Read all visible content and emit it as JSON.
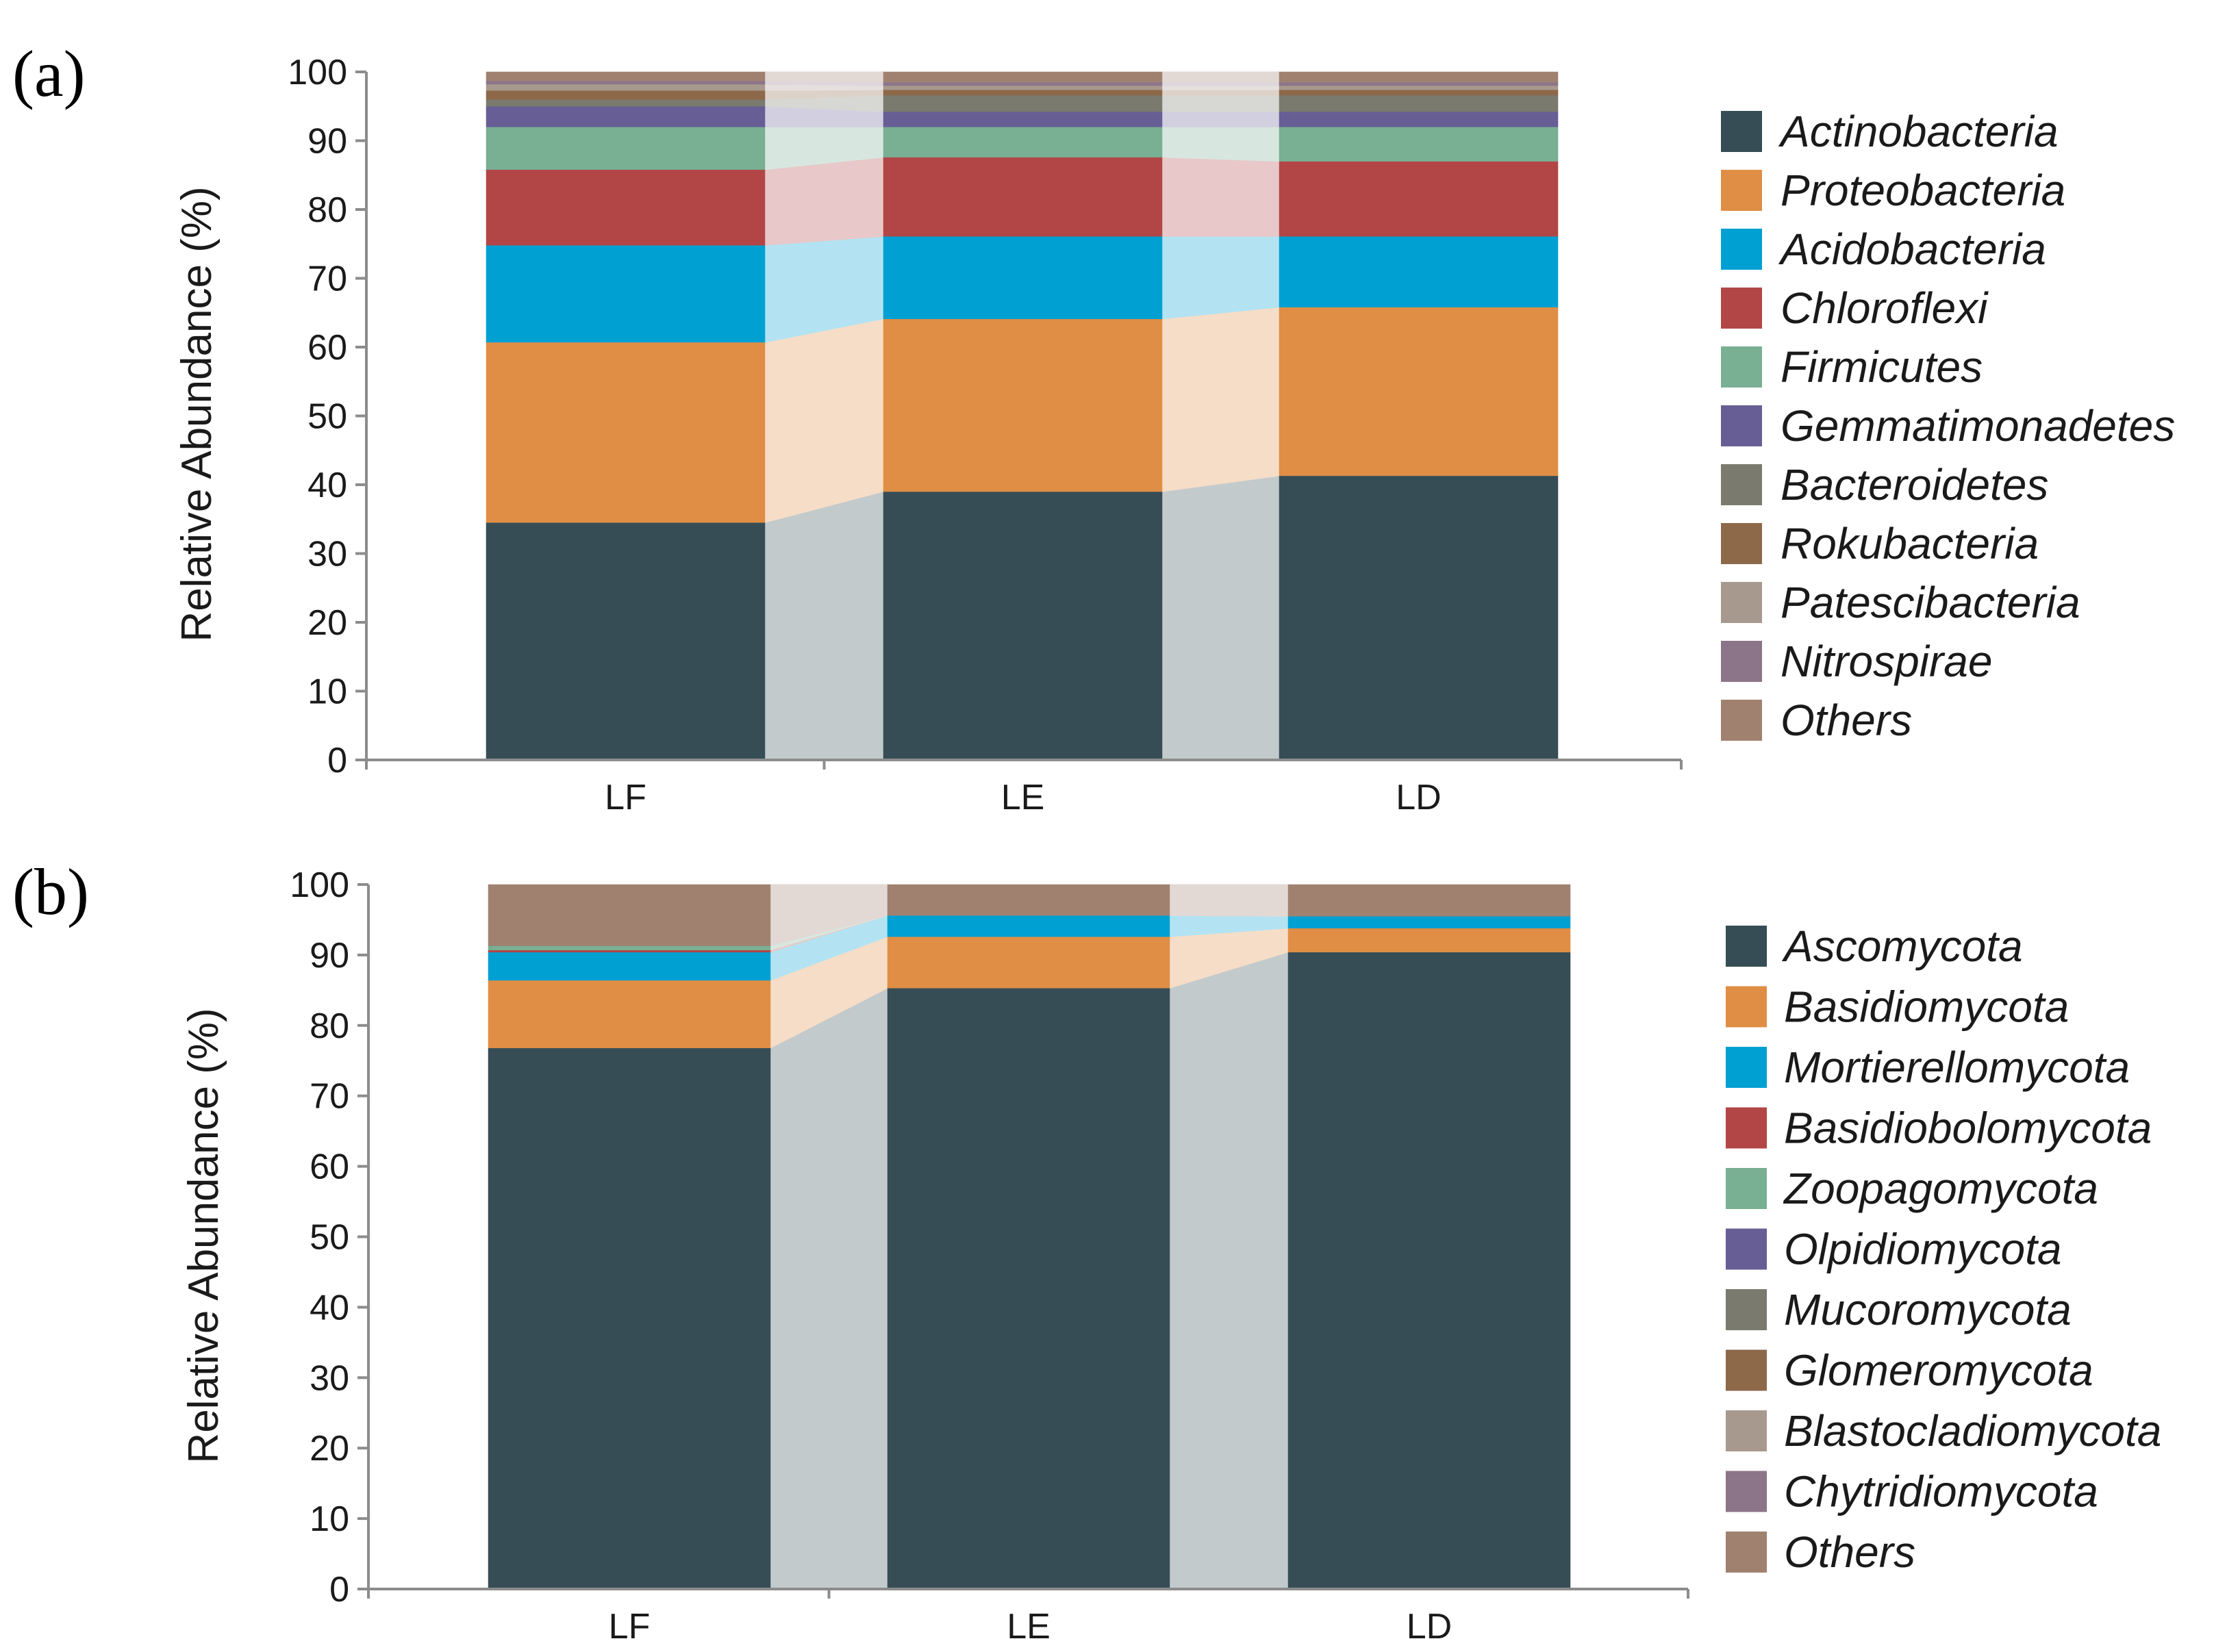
{
  "colors": {
    "dark": "#364d55",
    "orange": "#e08e45",
    "blue": "#00a0d2",
    "red": "#b24646",
    "green": "#79af93",
    "purple": "#675e96",
    "grey": "#7a7a6e",
    "brown": "#8d6849",
    "lightgrey": "#a8998e",
    "mauve": "#8c7589",
    "others": "#a08170"
  },
  "chart_data": [
    {
      "panel": "(a)",
      "type": "stacked-bar",
      "ylabel": "Relative Abundance (%)",
      "ylim": [
        0,
        100
      ],
      "yticks": [
        "0",
        "10",
        "20",
        "30",
        "40",
        "50",
        "60",
        "70",
        "80",
        "90",
        "100"
      ],
      "categories": [
        "LF",
        "LE",
        "LD"
      ],
      "series": [
        {
          "name": "Actinobacteria",
          "color": "dark",
          "values": [
            34.5,
            39.0,
            41.3
          ]
        },
        {
          "name": "Proteobacteria",
          "color": "orange",
          "values": [
            26.2,
            25.1,
            24.5
          ]
        },
        {
          "name": "Acidobacteria",
          "color": "blue",
          "values": [
            14.1,
            12.0,
            10.3
          ]
        },
        {
          "name": "Chloroflexi",
          "color": "red",
          "values": [
            11.0,
            11.5,
            10.9
          ]
        },
        {
          "name": "Firmicutes",
          "color": "green",
          "values": [
            6.2,
            4.4,
            5.0
          ]
        },
        {
          "name": "Gemmatimonadetes",
          "color": "purple",
          "values": [
            3.0,
            2.2,
            2.2
          ]
        },
        {
          "name": "Bacteroidetes",
          "color": "grey",
          "values": [
            1.0,
            2.4,
            2.4
          ]
        },
        {
          "name": "Rokubacteria",
          "color": "brown",
          "values": [
            1.3,
            0.8,
            0.8
          ]
        },
        {
          "name": "Patescibacteria",
          "color": "lightgrey",
          "values": [
            0.9,
            0.6,
            0.6
          ]
        },
        {
          "name": "Nitrospirae",
          "color": "mauve",
          "values": [
            0.5,
            0.5,
            0.5
          ]
        },
        {
          "name": "Others",
          "color": "others",
          "values": [
            1.3,
            1.5,
            1.5
          ]
        }
      ]
    },
    {
      "panel": "(b)",
      "type": "stacked-bar",
      "ylabel": "Relative Abundance (%)",
      "ylim": [
        0,
        100
      ],
      "yticks": [
        "0",
        "10",
        "20",
        "30",
        "40",
        "50",
        "60",
        "70",
        "80",
        "90",
        "100"
      ],
      "categories": [
        "LF",
        "LE",
        "LD"
      ],
      "series": [
        {
          "name": "Ascomycota",
          "color": "dark",
          "values": [
            76.8,
            85.3,
            90.4
          ]
        },
        {
          "name": "Basidiomycota",
          "color": "orange",
          "values": [
            9.6,
            7.3,
            3.4
          ]
        },
        {
          "name": "Mortierellomycota",
          "color": "blue",
          "values": [
            4.0,
            3.0,
            1.7
          ]
        },
        {
          "name": "Basidiobolomycota",
          "color": "red",
          "values": [
            0.3,
            0.0,
            0.0
          ]
        },
        {
          "name": "Zoopagomycota",
          "color": "green",
          "values": [
            0.6,
            0.0,
            0.0
          ]
        },
        {
          "name": "Olpidiomycota",
          "color": "purple",
          "values": [
            0.0,
            0.0,
            0.0
          ]
        },
        {
          "name": "Mucoromycota",
          "color": "grey",
          "values": [
            0.0,
            0.0,
            0.0
          ]
        },
        {
          "name": "Glomeromycota",
          "color": "brown",
          "values": [
            0.0,
            0.0,
            0.0
          ]
        },
        {
          "name": "Blastocladiomycota",
          "color": "lightgrey",
          "values": [
            0.0,
            0.0,
            0.0
          ]
        },
        {
          "name": "Chytridiomycota",
          "color": "mauve",
          "values": [
            0.0,
            0.0,
            0.0
          ]
        },
        {
          "name": "Others",
          "color": "others",
          "values": [
            8.7,
            4.4,
            4.5
          ]
        }
      ]
    }
  ]
}
